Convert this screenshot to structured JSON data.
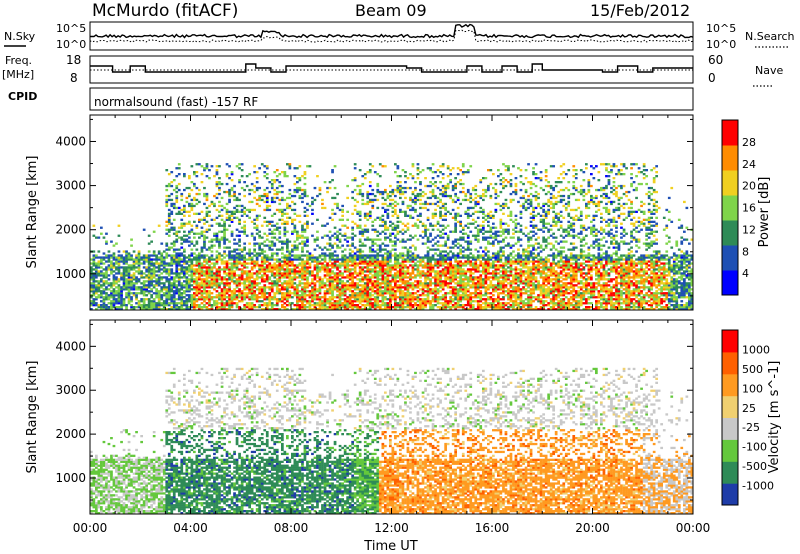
{
  "header": {
    "station": "McMurdo (fitACF)",
    "beam": "Beam 09",
    "date": "15/Feb/2012"
  },
  "noise_panel": {
    "left_label": "N.Sky",
    "right_label": "N.Search",
    "left_ticks": [
      "10^5",
      "10^0"
    ],
    "right_ticks": [
      "10^5",
      "10^0"
    ]
  },
  "freq_panel": {
    "left_label_1": "Freq.",
    "left_label_2": "[MHz]",
    "right_label": "Nave",
    "left_ticks": [
      "18",
      "8"
    ],
    "right_ticks": [
      "60",
      "0"
    ]
  },
  "cpid_panel": {
    "label": "CPID",
    "text": "normalsound (fast) -157 RF"
  },
  "x_axis": {
    "label": "Time UT",
    "ticks": [
      "00:00",
      "04:00",
      "08:00",
      "12:00",
      "16:00",
      "20:00",
      "00:00"
    ],
    "range_hours": [
      0,
      24
    ]
  },
  "chart_data": [
    {
      "type": "heatmap",
      "name": "Power",
      "xlabel": "Time UT",
      "ylabel": "Slant Range [km]",
      "xlim_hours": [
        0,
        24
      ],
      "ylim": [
        180,
        4600
      ],
      "y_ticks": [
        1000,
        2000,
        3000,
        4000
      ],
      "colorbar_label": "Power [dB]",
      "colorbar_ticks": [
        "28",
        "24",
        "20",
        "16",
        "12",
        "8",
        "4"
      ],
      "colorbar_range": [
        0,
        30
      ],
      "colors": [
        "#0000ff",
        "#1e50b4",
        "#2e8b57",
        "#7fd44a",
        "#f0d020",
        "#ff8c00",
        "#ff0000"
      ]
    },
    {
      "type": "heatmap",
      "name": "Velocity",
      "xlabel": "Time UT",
      "ylabel": "Slant Range [km]",
      "xlim_hours": [
        0,
        24
      ],
      "ylim": [
        180,
        4600
      ],
      "y_ticks": [
        1000,
        2000,
        3000,
        4000
      ],
      "colorbar_label": "Velocity [m s^-1]",
      "colorbar_ticks": [
        "1000",
        "500",
        "100",
        "25",
        "-25",
        "-100",
        "-500",
        "-1000"
      ],
      "colors": [
        "#1e3ca8",
        "#2e8b57",
        "#64c83c",
        "#c8c8c8",
        "#f0d070",
        "#ff9a20",
        "#ff6000",
        "#ff0000"
      ]
    }
  ]
}
